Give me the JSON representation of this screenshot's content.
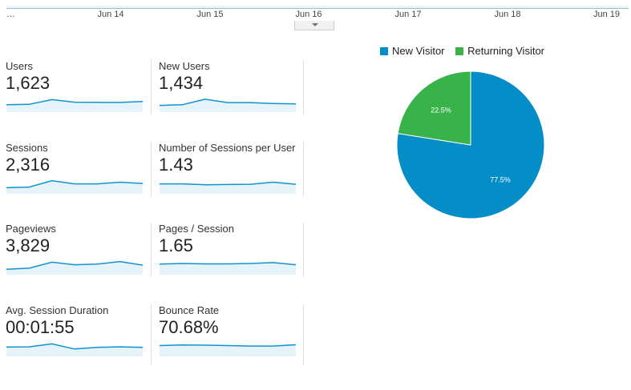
{
  "timeline": {
    "date_labels": [
      "…",
      "Jun 14",
      "Jun 15",
      "Jun 16",
      "Jun 17",
      "Jun 18",
      "Jun 19"
    ]
  },
  "metrics": [
    {
      "label": "Users",
      "value": "1,623",
      "trend": [
        0.45,
        0.48,
        0.85,
        0.65,
        0.64,
        0.63,
        0.7
      ]
    },
    {
      "label": "New Users",
      "value": "1,434",
      "trend": [
        0.4,
        0.45,
        0.88,
        0.62,
        0.62,
        0.55,
        0.52
      ]
    },
    {
      "label": "Sessions",
      "value": "2,316",
      "trend": [
        0.35,
        0.4,
        0.9,
        0.65,
        0.65,
        0.78,
        0.68
      ]
    },
    {
      "label": "Number of Sessions per User",
      "value": "1.43",
      "trend": [
        0.65,
        0.65,
        0.58,
        0.6,
        0.62,
        0.78,
        0.62
      ]
    },
    {
      "label": "Pageviews",
      "value": "3,829",
      "trend": [
        0.3,
        0.38,
        0.85,
        0.65,
        0.7,
        0.9,
        0.62
      ]
    },
    {
      "label": "Pages / Session",
      "value": "1.65",
      "trend": [
        0.7,
        0.75,
        0.72,
        0.72,
        0.75,
        0.82,
        0.65
      ]
    },
    {
      "label": "Avg. Session Duration",
      "value": "00:01:55",
      "trend": [
        0.6,
        0.62,
        0.85,
        0.45,
        0.58,
        0.62,
        0.58
      ]
    },
    {
      "label": "Bounce Rate",
      "value": "70.68%",
      "trend": [
        0.72,
        0.76,
        0.75,
        0.72,
        0.68,
        0.68,
        0.78
      ]
    }
  ],
  "chart_data": {
    "type": "pie",
    "title": "",
    "labels": [
      "New Visitor",
      "Returning Visitor"
    ],
    "values": [
      77.5,
      22.5
    ],
    "value_labels": [
      "77.5%",
      "22.5%"
    ],
    "colors": [
      "#058dc7",
      "#37b34a"
    ],
    "legend_position": "top"
  },
  "colors": {
    "sparkline_line": "#0f94cf",
    "sparkline_fill": "#e6f3fa",
    "separator": "#e0e0e0"
  }
}
